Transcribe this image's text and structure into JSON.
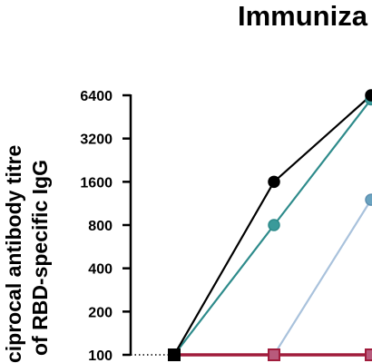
{
  "chart_data": {
    "type": "line",
    "title": "Immuniza",
    "ylabel_lines": [
      "ciprocal antibody titre",
      "of RBD-specific IgG"
    ],
    "yscale": "log2",
    "ylim": [
      100,
      6400
    ],
    "yticks": [
      100,
      200,
      400,
      800,
      1600,
      3200,
      6400
    ],
    "ytick_labels": [
      "100",
      "200",
      "400",
      "800",
      "1600",
      "3200",
      "6400"
    ],
    "x": [
      0,
      1,
      2
    ],
    "series": [
      {
        "color": "#000000",
        "marker": "circle",
        "marker_fill": "#000000",
        "values": [
          100,
          1600,
          6400
        ]
      },
      {
        "color": "#2e8b8b",
        "marker": "circle",
        "marker_fill": "#3a9a9a",
        "values": [
          100,
          800,
          6000
        ]
      },
      {
        "color": "#a9c2dc",
        "marker": "circle",
        "marker_fill": "#6aa3c0",
        "values": [
          100,
          100,
          1200
        ]
      },
      {
        "color": "#a01c3c",
        "marker": "square",
        "marker_fill": "#b85a7c",
        "values": [
          100,
          100,
          100
        ]
      }
    ],
    "baseline_style": "dotted"
  }
}
